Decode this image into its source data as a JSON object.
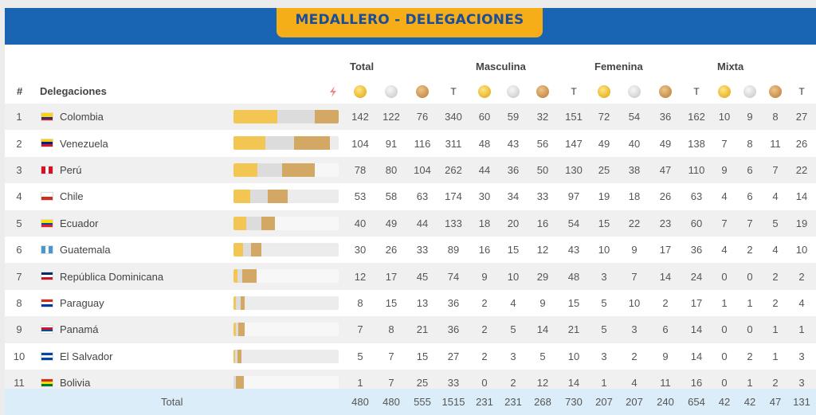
{
  "title": "MEDALLERO - DELEGACIONES",
  "groups": [
    "Total",
    "Masculina",
    "Femenina",
    "Mixta"
  ],
  "headers": {
    "rank": "#",
    "delegation": "Delegaciones",
    "total_col": "T"
  },
  "icons": {
    "sort": "sort-arrows-icon",
    "gold": "gold-medal-icon",
    "silver": "silver-medal-icon",
    "bronze": "bronze-medal-icon"
  },
  "colors": {
    "header_band": "#1a64b4",
    "title_tab": "#f6ae18",
    "title_text": "#1a4d9a",
    "gold": "#f3c653",
    "silver": "#dcdcdc",
    "bronze": "#d2a864",
    "total_row": "#daedf8"
  },
  "rows": [
    {
      "rank": "1",
      "country": "Colombia",
      "flag": [
        "#fcd116",
        "#fcd116",
        "#003893",
        "#ce1126"
      ],
      "vals": [
        142,
        122,
        76,
        340,
        60,
        59,
        32,
        151,
        72,
        54,
        36,
        162,
        10,
        9,
        8,
        27
      ]
    },
    {
      "rank": "2",
      "country": "Venezuela",
      "flag": [
        "#ffcc00",
        "#00247d",
        "#cf142b"
      ],
      "vals": [
        104,
        91,
        116,
        311,
        48,
        43,
        56,
        147,
        49,
        40,
        49,
        138,
        7,
        8,
        11,
        26
      ]
    },
    {
      "rank": "3",
      "country": "Perú",
      "flag": [
        "#d91023",
        "#ffffff",
        "#d91023"
      ],
      "flag_dir": "row",
      "vals": [
        78,
        80,
        104,
        262,
        44,
        36,
        50,
        130,
        25,
        38,
        47,
        110,
        9,
        6,
        7,
        22
      ]
    },
    {
      "rank": "4",
      "country": "Chile",
      "flag": [
        "#ffffff",
        "#d52b1e"
      ],
      "vals": [
        53,
        58,
        63,
        174,
        30,
        34,
        33,
        97,
        19,
        18,
        26,
        63,
        4,
        6,
        4,
        14
      ]
    },
    {
      "rank": "5",
      "country": "Ecuador",
      "flag": [
        "#ffdd00",
        "#ffdd00",
        "#034ea2",
        "#ed1c24"
      ],
      "vals": [
        40,
        49,
        44,
        133,
        18,
        20,
        16,
        54,
        15,
        22,
        23,
        60,
        7,
        7,
        5,
        19
      ]
    },
    {
      "rank": "6",
      "country": "Guatemala",
      "flag": [
        "#4997d0",
        "#ffffff",
        "#4997d0"
      ],
      "flag_dir": "row",
      "vals": [
        30,
        26,
        33,
        89,
        16,
        15,
        12,
        43,
        10,
        9,
        17,
        36,
        4,
        2,
        4,
        10
      ]
    },
    {
      "rank": "7",
      "country": "República Dominicana",
      "flag": [
        "#002d62",
        "#ffffff",
        "#ce1126"
      ],
      "vals": [
        12,
        17,
        45,
        74,
        9,
        10,
        29,
        48,
        3,
        7,
        14,
        24,
        0,
        0,
        2,
        2
      ]
    },
    {
      "rank": "8",
      "country": "Paraguay",
      "flag": [
        "#d52b1e",
        "#ffffff",
        "#0038a8"
      ],
      "vals": [
        8,
        15,
        13,
        36,
        2,
        4,
        9,
        15,
        5,
        10,
        2,
        17,
        1,
        1,
        2,
        4
      ]
    },
    {
      "rank": "9",
      "country": "Panamá",
      "flag": [
        "#ffffff",
        "#d21034",
        "#005293",
        "#ffffff"
      ],
      "vals": [
        7,
        8,
        21,
        36,
        2,
        5,
        14,
        21,
        5,
        3,
        6,
        14,
        0,
        0,
        1,
        1
      ]
    },
    {
      "rank": "10",
      "country": "El Salvador",
      "flag": [
        "#0047ab",
        "#ffffff",
        "#0047ab"
      ],
      "vals": [
        5,
        7,
        15,
        27,
        2,
        3,
        5,
        10,
        3,
        2,
        9,
        14,
        0,
        2,
        1,
        3
      ]
    },
    {
      "rank": "11",
      "country": "Bolivia",
      "flag": [
        "#d52b1e",
        "#f9e300",
        "#007934"
      ],
      "vals": [
        1,
        7,
        25,
        33,
        0,
        2,
        12,
        14,
        1,
        4,
        11,
        16,
        0,
        1,
        2,
        3
      ]
    }
  ],
  "total": {
    "label": "Total",
    "vals": [
      480,
      480,
      555,
      1515,
      231,
      231,
      268,
      730,
      207,
      207,
      240,
      654,
      42,
      42,
      47,
      131
    ]
  },
  "bar_max": 340
}
